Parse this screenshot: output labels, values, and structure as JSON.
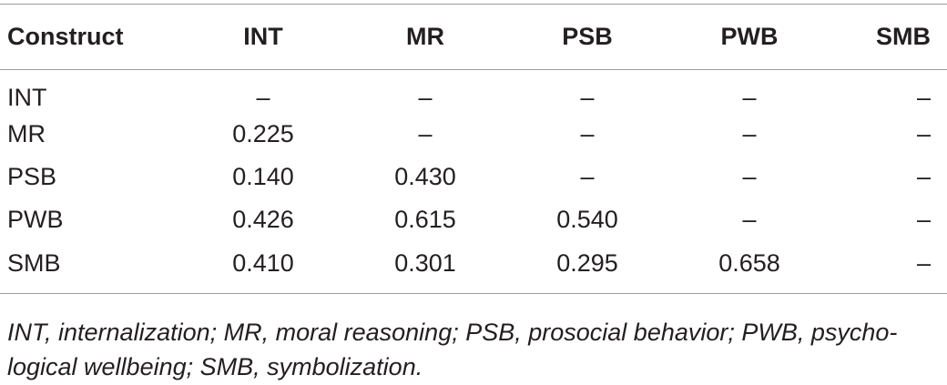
{
  "table": {
    "headers": [
      "Construct",
      "INT",
      "MR",
      "PSB",
      "PWB",
      "SMB"
    ],
    "rows": [
      [
        "INT",
        "–",
        "–",
        "–",
        "–",
        "–"
      ],
      [
        "MR",
        "0.225",
        "–",
        "–",
        "–",
        "–"
      ],
      [
        "PSB",
        "0.140",
        "0.430",
        "–",
        "–",
        "–"
      ],
      [
        "PWB",
        "0.426",
        "0.615",
        "0.540",
        "–",
        "–"
      ],
      [
        "SMB",
        "0.410",
        "0.301",
        "0.295",
        "0.658",
        "–"
      ]
    ]
  },
  "footnote": {
    "line1": "INT, internalization; MR, moral reasoning; PSB, prosocial behavior; PWB, psycho-",
    "line2": "logical wellbeing; SMB, symbolization."
  }
}
